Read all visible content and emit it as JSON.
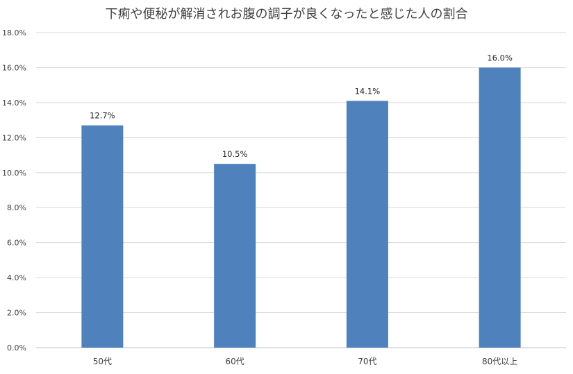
{
  "chart_data": {
    "type": "bar",
    "title": "下痢や便秘が解消されお腹の調子が良くなったと感じた人の割合",
    "xlabel": "",
    "ylabel": "",
    "categories": [
      "50代",
      "60代",
      "70代",
      "80代以上"
    ],
    "values": [
      12.7,
      10.5,
      14.1,
      16.0
    ],
    "data_labels": [
      "12.7%",
      "10.5%",
      "14.1%",
      "16.0%"
    ],
    "ylim": [
      0,
      18
    ],
    "y_ticks": [
      0,
      2,
      4,
      6,
      8,
      10,
      12,
      14,
      16,
      18
    ],
    "y_tick_labels": [
      "0.0%",
      "2.0%",
      "4.0%",
      "6.0%",
      "8.0%",
      "10.0%",
      "12.0%",
      "14.0%",
      "16.0%",
      "18.0%"
    ],
    "grid": true,
    "legend": "none",
    "bar_color": "#4f81bd"
  }
}
